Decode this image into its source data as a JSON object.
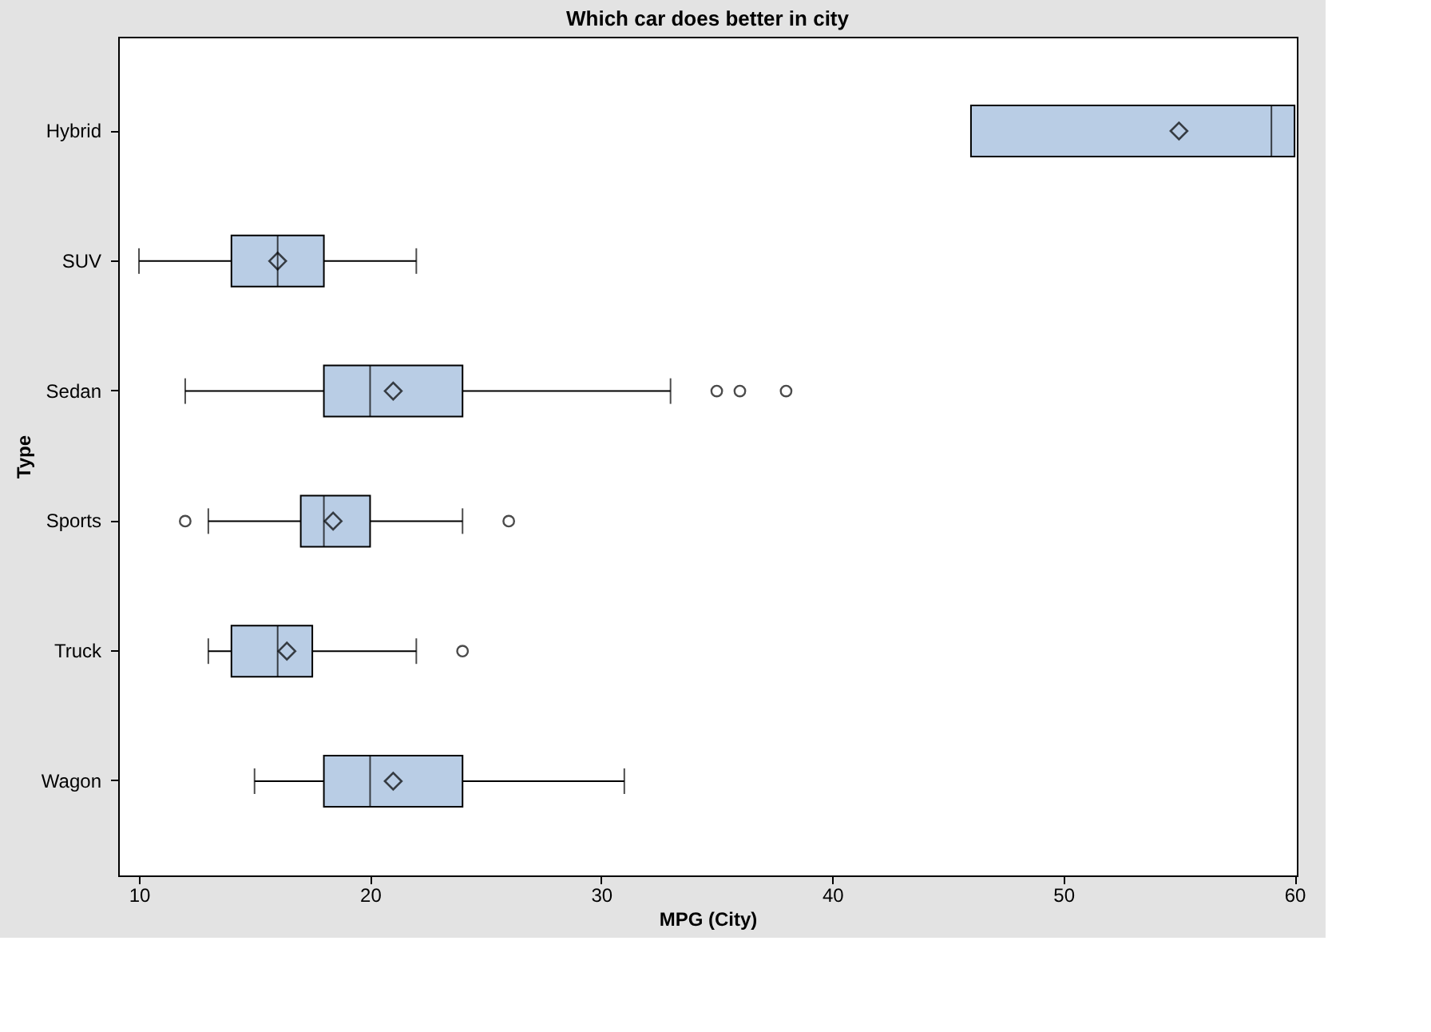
{
  "chart_data": {
    "type": "box",
    "orientation": "horizontal",
    "title": "Which car does better in city",
    "xlabel": "MPG (City)",
    "ylabel": "Type",
    "color": "#b9cde5",
    "categories": [
      "Hybrid",
      "SUV",
      "Sedan",
      "Sports",
      "Truck",
      "Wagon"
    ],
    "boxes": [
      {
        "low": 46,
        "q1": 46,
        "median": 59,
        "q3": 60,
        "high": 60,
        "mean": 55
      },
      {
        "low": 10,
        "q1": 14,
        "median": 16,
        "q3": 18,
        "high": 22,
        "mean": 16
      },
      {
        "low": 12,
        "q1": 18,
        "median": 20,
        "q3": 24,
        "high": 33,
        "mean": 21,
        "outliers": [
          35,
          36,
          38
        ]
      },
      {
        "low": 13,
        "q1": 17,
        "median": 18,
        "q3": 20,
        "high": 24,
        "mean": 18.4,
        "outliers": [
          12,
          26
        ]
      },
      {
        "low": 13,
        "q1": 14,
        "median": 16,
        "q3": 17.5,
        "high": 22,
        "mean": 16.4,
        "outliers": [
          24
        ]
      },
      {
        "low": 15,
        "q1": 18,
        "median": 20,
        "q3": 24,
        "high": 31,
        "mean": 21
      }
    ],
    "xlim": [
      9.1,
      60.1
    ],
    "xticks": [
      10,
      20,
      30,
      40,
      50,
      60
    ],
    "grid": false
  }
}
